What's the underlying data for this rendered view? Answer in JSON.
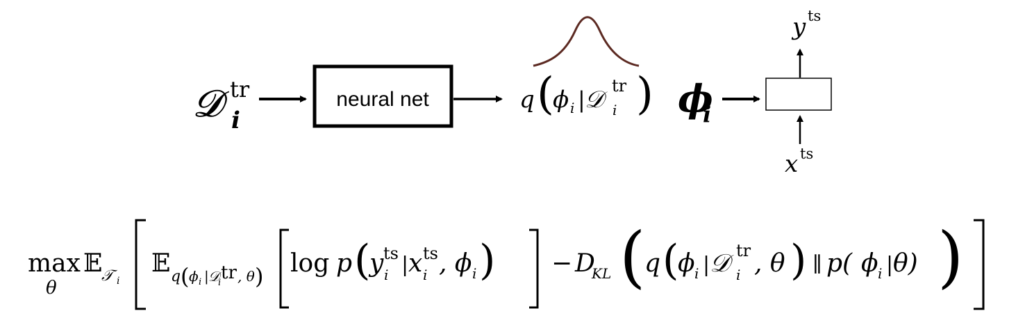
{
  "diagram": {
    "input": {
      "base": "𝓓",
      "sub": "i",
      "sup": "tr"
    },
    "network_label": "neural net",
    "posterior": {
      "q": "q",
      "phi": "ϕ",
      "sub_i": "i",
      "bar": "|",
      "D": "𝒟",
      "sup_tr": "tr"
    },
    "phi_input": {
      "base": "ϕ",
      "sub": "i"
    },
    "predictor": {
      "output": {
        "base": "y",
        "sup": "ts"
      },
      "input": {
        "base": "x",
        "sup": "ts"
      }
    }
  },
  "objective": {
    "max": "max",
    "theta": "θ",
    "E": "𝔼",
    "task": "𝒯",
    "task_sub": "i",
    "inner_q": "q",
    "inner_phi": "ϕ",
    "inner_i": "i",
    "inner_bar": "|",
    "inner_D": "𝒟",
    "inner_i2": "i",
    "inner_tr": "tr",
    "inner_comma_theta": ", θ",
    "log": "log",
    "p": "p",
    "y": "y",
    "ts1": "ts",
    "yi": "i",
    "bar1": "|",
    "x": "x",
    "ts2": "ts",
    "xi": "i",
    "comma_phi": ", ϕ",
    "phi_i": "i",
    "minus": "−",
    "DKL": "D",
    "KL": "KL",
    "kq": "q",
    "kphi": "ϕ",
    "kphi_i": "i",
    "kbar": "|",
    "kD": "𝒟",
    "kD_i": "i",
    "kD_tr": "tr",
    "kcomma_theta": ", θ",
    "parallel": "∥",
    "kp": "p(",
    "kphi2": "ϕ",
    "kphi2_i": "i",
    "kbar2": "|",
    "ktheta_close": "θ)"
  }
}
